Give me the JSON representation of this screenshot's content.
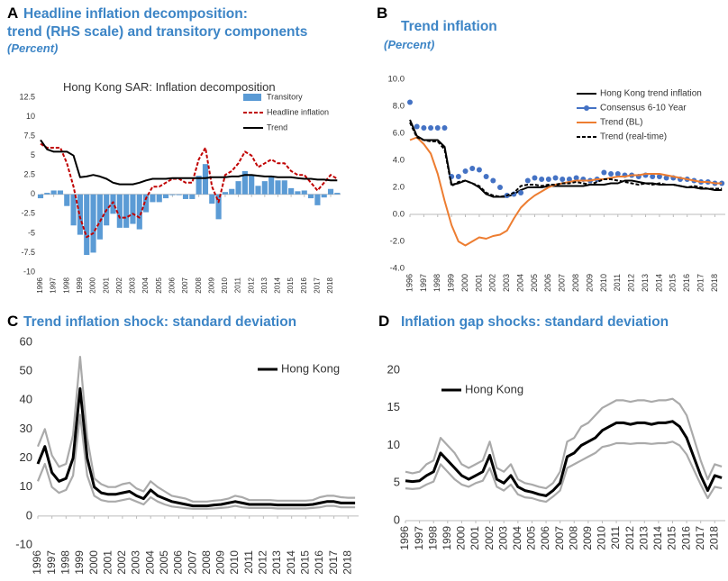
{
  "chart_data": [
    {
      "type": "combo",
      "panel": "A",
      "title": [
        "Headline inflation decomposition:",
        "trend (RHS scale) and transitory components"
      ],
      "subtitle": "(Percent)",
      "inner_title": "Hong Kong SAR: Inflation decomposition",
      "x": [
        1996,
        1996.5,
        1997,
        1997.5,
        1998,
        1998.5,
        1999,
        1999.5,
        2000,
        2000.5,
        2001,
        2001.5,
        2002,
        2002.5,
        2003,
        2003.5,
        2004,
        2004.5,
        2005,
        2005.5,
        2006,
        2006.5,
        2007,
        2007.5,
        2008,
        2008.5,
        2009,
        2009.5,
        2010,
        2010.5,
        2011,
        2011.5,
        2012,
        2012.5,
        2013,
        2013.5,
        2014,
        2014.5,
        2015,
        2015.5,
        2016,
        2016.5,
        2017,
        2017.5,
        2018,
        2018.5
      ],
      "series": [
        {
          "name": "Transitory",
          "type": "bar",
          "color": "#5b9bd5",
          "values": [
            -0.5,
            0.2,
            0.5,
            0.5,
            -1.5,
            -4.0,
            -5.2,
            -7.8,
            -7.5,
            -5.8,
            -4.0,
            -2.5,
            -4.3,
            -4.3,
            -3.8,
            -4.5,
            -2.3,
            -1.0,
            -1.0,
            -0.5,
            -0.1,
            -0.1,
            -0.6,
            -0.6,
            2.4,
            3.9,
            -1.2,
            -3.2,
            0.3,
            0.7,
            1.7,
            3.0,
            2.5,
            1.1,
            1.7,
            2.2,
            1.8,
            1.8,
            0.8,
            0.4,
            0.5,
            -0.5,
            -1.4,
            -0.4,
            0.7,
            0.2
          ]
        },
        {
          "name": "Headline inflation",
          "type": "line",
          "dashed": true,
          "color": "#c00000",
          "values": [
            6.5,
            6.0,
            6.0,
            6.0,
            4.0,
            1.0,
            -3.0,
            -5.5,
            -5.0,
            -3.5,
            -2.0,
            -1.0,
            -3.0,
            -3.0,
            -2.5,
            -3.0,
            -0.5,
            1.0,
            1.0,
            1.5,
            2.0,
            2.0,
            1.5,
            1.5,
            4.5,
            6.0,
            1.0,
            -1.0,
            2.5,
            3.0,
            4.0,
            5.5,
            5.0,
            3.5,
            4.0,
            4.5,
            4.0,
            4.0,
            3.0,
            2.5,
            2.5,
            1.5,
            0.5,
            1.5,
            2.5,
            2.0
          ]
        },
        {
          "name": "Trend",
          "type": "line",
          "color": "#000000",
          "values": [
            7.0,
            5.8,
            5.5,
            5.5,
            5.5,
            5.0,
            2.2,
            2.3,
            2.5,
            2.3,
            2.0,
            1.5,
            1.3,
            1.3,
            1.3,
            1.5,
            1.8,
            2.0,
            2.0,
            2.0,
            2.1,
            2.1,
            2.1,
            2.1,
            2.1,
            2.1,
            2.2,
            2.2,
            2.2,
            2.3,
            2.3,
            2.5,
            2.5,
            2.4,
            2.3,
            2.3,
            2.2,
            2.2,
            2.2,
            2.1,
            2.0,
            2.0,
            1.9,
            1.9,
            1.8,
            1.8
          ]
        }
      ],
      "xlim": [
        1996,
        2018.75
      ],
      "xticks": [
        1996,
        1997,
        1998,
        1999,
        2000,
        2001,
        2002,
        2003,
        2004,
        2005,
        2006,
        2007,
        2008,
        2009,
        2010,
        2011,
        2012,
        2013,
        2014,
        2015,
        2016,
        2017,
        2018
      ],
      "ylim": [
        -10,
        12.5
      ],
      "yticks": [
        12.5,
        10,
        7.5,
        5,
        2.5,
        0,
        -2.5,
        -5,
        -7.5,
        -10
      ],
      "grid": false,
      "legend": "upper right"
    },
    {
      "type": "line",
      "panel": "B",
      "title": [
        "Trend inflation"
      ],
      "subtitle": "(Percent)",
      "x": [
        1996,
        1996.5,
        1997,
        1997.5,
        1998,
        1998.5,
        1999,
        1999.5,
        2000,
        2000.5,
        2001,
        2001.5,
        2002,
        2002.5,
        2003,
        2003.5,
        2004,
        2004.5,
        2005,
        2005.5,
        2006,
        2006.5,
        2007,
        2007.5,
        2008,
        2008.5,
        2009,
        2009.5,
        2010,
        2010.5,
        2011,
        2011.5,
        2012,
        2012.5,
        2013,
        2013.5,
        2014,
        2014.5,
        2015,
        2015.5,
        2016,
        2016.5,
        2017,
        2017.5,
        2018,
        2018.5
      ],
      "series": [
        {
          "name": "Hong Kong trend inflation",
          "type": "line",
          "color": "#000000",
          "values": [
            7.0,
            5.8,
            5.5,
            5.5,
            5.5,
            5.0,
            2.2,
            2.3,
            2.5,
            2.3,
            2.0,
            1.5,
            1.3,
            1.3,
            1.3,
            1.5,
            1.8,
            2.0,
            2.0,
            2.0,
            2.1,
            2.1,
            2.1,
            2.1,
            2.1,
            2.1,
            2.2,
            2.2,
            2.2,
            2.3,
            2.3,
            2.5,
            2.5,
            2.4,
            2.3,
            2.3,
            2.2,
            2.2,
            2.2,
            2.1,
            2.0,
            2.0,
            1.9,
            1.9,
            1.8,
            1.8
          ]
        },
        {
          "name": "Consensus 6-10 Year",
          "type": "scatter",
          "color": "#4472c4",
          "values": [
            8.3,
            6.5,
            6.4,
            6.4,
            6.4,
            6.4,
            2.8,
            2.8,
            3.2,
            3.4,
            3.3,
            2.8,
            2.5,
            2.0,
            1.4,
            1.5,
            1.6,
            2.5,
            2.7,
            2.6,
            2.6,
            2.7,
            2.6,
            2.6,
            2.7,
            2.6,
            2.5,
            2.6,
            3.1,
            3.0,
            3.0,
            2.9,
            2.9,
            2.8,
            2.9,
            2.8,
            2.8,
            2.7,
            2.7,
            2.6,
            2.6,
            2.5,
            2.4,
            2.4,
            2.3,
            2.3
          ]
        },
        {
          "name": "Trend (BL)",
          "type": "line",
          "color": "#ed7d31",
          "values": [
            5.5,
            5.7,
            5.2,
            4.5,
            3.0,
            1.0,
            -0.8,
            -2.0,
            -2.3,
            -2.0,
            -1.7,
            -1.8,
            -1.6,
            -1.5,
            -1.2,
            -0.3,
            0.5,
            1.0,
            1.4,
            1.7,
            2.0,
            2.2,
            2.3,
            2.4,
            2.5,
            2.5,
            2.5,
            2.6,
            2.6,
            2.7,
            2.8,
            2.8,
            2.9,
            2.9,
            3.0,
            3.0,
            3.0,
            2.9,
            2.8,
            2.7,
            2.6,
            2.5,
            2.4,
            2.4,
            2.3,
            2.3
          ]
        },
        {
          "name": "Trend (real-time)",
          "type": "line",
          "dashed": true,
          "color": "#000000",
          "values": [
            6.8,
            5.7,
            5.5,
            5.4,
            5.4,
            4.8,
            2.1,
            2.4,
            2.5,
            2.3,
            2.1,
            1.6,
            1.4,
            1.3,
            1.4,
            1.6,
            2.1,
            2.2,
            2.2,
            2.1,
            2.2,
            2.2,
            2.3,
            2.3,
            2.4,
            2.3,
            2.2,
            2.4,
            2.6,
            2.6,
            2.5,
            2.4,
            2.3,
            2.2,
            2.3,
            2.2,
            2.3,
            2.2,
            2.2,
            2.1,
            2.0,
            2.1,
            2.0,
            1.9,
            1.9,
            1.9
          ]
        }
      ],
      "xlim": [
        1996,
        2018.75
      ],
      "xticks": [
        1996,
        1997,
        1998,
        1999,
        2000,
        2001,
        2002,
        2003,
        2004,
        2005,
        2006,
        2007,
        2008,
        2009,
        2010,
        2011,
        2012,
        2013,
        2014,
        2015,
        2016,
        2017,
        2018
      ],
      "ylim": [
        -4,
        10
      ],
      "yticks": [
        {
          "value": 10,
          "label": "10.0"
        },
        {
          "value": 8,
          "label": "8.0"
        },
        {
          "value": 6,
          "label": "6.0"
        },
        {
          "value": 4,
          "label": "4.0"
        },
        {
          "value": 2,
          "label": "2.0"
        },
        {
          "value": 0,
          "label": "0.0"
        },
        {
          "value": -2,
          "label": "-2.0"
        },
        {
          "value": -4,
          "label": "-4.0"
        }
      ],
      "grid": false,
      "legend": "upper right"
    },
    {
      "type": "line",
      "panel": "C",
      "title": [
        "Trend inflation shock: standard deviation"
      ],
      "x": [
        1996,
        1996.5,
        1997,
        1997.5,
        1998,
        1998.5,
        1999,
        1999.5,
        2000,
        2000.5,
        2001,
        2001.5,
        2002,
        2002.5,
        2003,
        2003.5,
        2004,
        2004.5,
        2005,
        2005.5,
        2006,
        2006.5,
        2007,
        2007.5,
        2008,
        2008.5,
        2009,
        2009.5,
        2010,
        2010.5,
        2011,
        2011.5,
        2012,
        2012.5,
        2013,
        2013.5,
        2014,
        2014.5,
        2015,
        2015.5,
        2016,
        2016.5,
        2017,
        2017.5,
        2018,
        2018.5
      ],
      "series": [
        {
          "type": "line",
          "color": "#aaaaaa",
          "values": [
            24,
            30,
            21,
            17,
            18,
            28,
            55,
            27,
            13,
            11,
            10,
            10,
            11,
            11.5,
            9.5,
            8.5,
            12,
            10,
            8.5,
            7,
            6.5,
            6,
            5,
            5,
            5,
            5.3,
            5.5,
            6,
            7,
            6.5,
            5.5,
            5.5,
            5.5,
            5.5,
            5.3,
            5.3,
            5.3,
            5.3,
            5.3,
            5.5,
            6.5,
            7,
            7,
            6.5,
            6.3,
            6.3
          ]
        },
        {
          "type": "line",
          "color": "#aaaaaa",
          "values": [
            12,
            18,
            10,
            8,
            9,
            14,
            35,
            14,
            7,
            5.5,
            5,
            5,
            5.5,
            6,
            5,
            4,
            6.5,
            5,
            4,
            3.3,
            3,
            2.7,
            2.5,
            2.5,
            2.5,
            2.6,
            2.8,
            3,
            3.5,
            3,
            2.8,
            2.8,
            2.8,
            2.8,
            2.6,
            2.6,
            2.6,
            2.6,
            2.6,
            2.8,
            3,
            3.5,
            3.5,
            3,
            3,
            3
          ]
        },
        {
          "name": "Hong Kong",
          "type": "line",
          "color": "#000000",
          "values": [
            18,
            24,
            15,
            12,
            13,
            20,
            44,
            20,
            10,
            8,
            7.5,
            7.5,
            8,
            8.5,
            7,
            6,
            9,
            7,
            6,
            5,
            4.5,
            4,
            3.5,
            3.5,
            3.5,
            3.8,
            4,
            4.5,
            5,
            4.5,
            4,
            4,
            4,
            4,
            3.8,
            3.8,
            3.8,
            3.8,
            3.8,
            4,
            4.5,
            5,
            5,
            4.5,
            4.5,
            4.5
          ]
        }
      ],
      "xlim": [
        1996,
        2018.75
      ],
      "xticks": [
        1996,
        1997,
        1998,
        1999,
        2000,
        2001,
        2002,
        2003,
        2004,
        2005,
        2006,
        2007,
        2008,
        2009,
        2010,
        2011,
        2012,
        2013,
        2014,
        2015,
        2016,
        2017,
        2018
      ],
      "ylim": [
        -10,
        60
      ],
      "yticks": [
        60,
        50,
        40,
        30,
        20,
        10,
        0,
        -10
      ],
      "grid": false,
      "legend": "upper right"
    },
    {
      "type": "line",
      "panel": "D",
      "title": [
        "Inflation gap shocks: standard deviation"
      ],
      "x": [
        1996,
        1996.5,
        1997,
        1997.5,
        1998,
        1998.5,
        1999,
        1999.5,
        2000,
        2000.5,
        2001,
        2001.5,
        2002,
        2002.5,
        2003,
        2003.5,
        2004,
        2004.5,
        2005,
        2005.5,
        2006,
        2006.5,
        2007,
        2007.5,
        2008,
        2008.5,
        2009,
        2009.5,
        2010,
        2010.5,
        2011,
        2011.5,
        2012,
        2012.5,
        2013,
        2013.5,
        2014,
        2014.5,
        2015,
        2015.5,
        2016,
        2016.5,
        2017,
        2017.5,
        2018,
        2018.5
      ],
      "series": [
        {
          "type": "line",
          "color": "#aaaaaa",
          "values": [
            6.5,
            6.3,
            6.5,
            7.5,
            8,
            11,
            10,
            9,
            7.5,
            7,
            7.5,
            8,
            10.5,
            7,
            6.5,
            7.5,
            5.5,
            5,
            4.8,
            4.5,
            4.3,
            5,
            6.5,
            10.5,
            11,
            12.5,
            13,
            14,
            15,
            15.5,
            16,
            16,
            15.8,
            16,
            16,
            15.8,
            16,
            16,
            16.2,
            15.5,
            14,
            11,
            8,
            5.5,
            7.5,
            7.2
          ]
        },
        {
          "type": "line",
          "color": "#aaaaaa",
          "values": [
            4.3,
            4.2,
            4.3,
            4.8,
            5.2,
            7.5,
            6.5,
            5.5,
            4.8,
            4.5,
            5,
            5.3,
            7,
            4.5,
            4,
            4.8,
            3.5,
            3.1,
            3,
            2.7,
            2.5,
            3.2,
            4,
            7,
            7.5,
            8,
            8.5,
            9,
            9.8,
            10,
            10.3,
            10.3,
            10.2,
            10.3,
            10.3,
            10.2,
            10.3,
            10.3,
            10.5,
            10,
            8.8,
            6.8,
            4.8,
            3,
            4.5,
            4.3
          ]
        },
        {
          "name": "Hong Kong",
          "type": "line",
          "color": "#000000",
          "values": [
            5.3,
            5.2,
            5.3,
            6,
            6.5,
            9,
            8,
            7,
            6,
            5.5,
            6,
            6.5,
            8.7,
            5.5,
            5,
            6,
            4.5,
            4,
            3.8,
            3.5,
            3.3,
            4,
            5,
            8.5,
            9,
            10,
            10.5,
            11,
            12,
            12.5,
            13,
            13,
            12.8,
            13,
            13,
            12.8,
            13,
            13,
            13.2,
            12.5,
            11,
            8.5,
            6,
            4,
            6,
            5.7
          ]
        }
      ],
      "xlim": [
        1996,
        2018.75
      ],
      "xticks": [
        1996,
        1997,
        1998,
        1999,
        2000,
        2001,
        2002,
        2003,
        2004,
        2005,
        2006,
        2007,
        2008,
        2009,
        2010,
        2011,
        2012,
        2013,
        2014,
        2015,
        2016,
        2017,
        2018
      ],
      "ylim": [
        0,
        20
      ],
      "yticks": [
        20,
        15,
        10,
        5,
        0
      ],
      "grid": false,
      "legend": "upper left"
    }
  ]
}
